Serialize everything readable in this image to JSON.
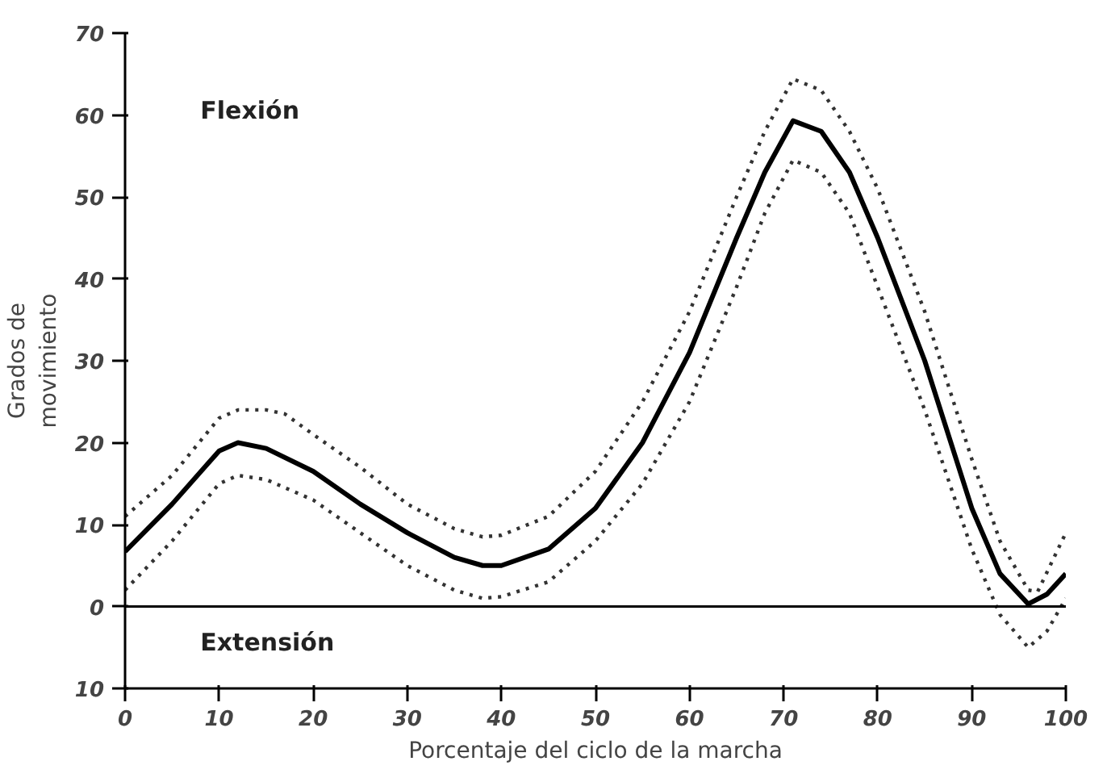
{
  "chart_data": {
    "type": "line",
    "xlabel": "Porcentaje del ciclo de la marcha",
    "ylabel": "Grados de\nmovimiento",
    "annotations": [
      "Flexión",
      "Extensión"
    ],
    "xlim": [
      0,
      100
    ],
    "xticks": [
      0,
      10,
      20,
      30,
      40,
      50,
      60,
      70,
      80,
      90,
      100
    ],
    "ylim": [
      -10,
      70
    ],
    "yticks": [
      {
        "value": -10,
        "label": "10"
      },
      0,
      10,
      20,
      30,
      40,
      50,
      60,
      70
    ],
    "grid": false,
    "marker": "none",
    "ref_lines": [
      {
        "axis": "y",
        "value": 0,
        "color": "#000000",
        "line_style": "solid"
      }
    ],
    "series": [
      {
        "color": "#000000",
        "line_style": "solid",
        "x": [
          0,
          5,
          10,
          12,
          15,
          20,
          25,
          30,
          35,
          38,
          40,
          45,
          50,
          55,
          60,
          65,
          68,
          71,
          74,
          77,
          80,
          85,
          90,
          93,
          96,
          98,
          100
        ],
        "values": [
          6.7,
          12.5,
          19,
          20,
          19.3,
          16.5,
          12.5,
          9,
          6,
          5,
          5,
          7,
          12,
          20,
          31,
          45,
          53,
          59.3,
          58,
          53,
          45,
          30,
          12,
          4,
          0.3,
          1.5,
          4
        ]
      },
      {
        "color": "#333333",
        "line_style": "dotted",
        "x": [
          0,
          5,
          10,
          12,
          15,
          17,
          20,
          25,
          30,
          35,
          38,
          40,
          45,
          50,
          55,
          60,
          65,
          68,
          71,
          74,
          77,
          80,
          85,
          90,
          93,
          96,
          97,
          100
        ],
        "values": [
          11,
          16,
          23,
          24,
          24,
          23.5,
          21,
          17,
          12.5,
          9.5,
          8.5,
          8.7,
          11,
          16.5,
          25,
          36,
          50,
          58,
          64.4,
          63,
          58,
          51,
          36,
          18,
          8,
          2,
          1.8,
          9
        ]
      },
      {
        "color": "#333333",
        "line_style": "dotted",
        "x": [
          0,
          5,
          10,
          12,
          15,
          20,
          25,
          30,
          35,
          38,
          40,
          45,
          50,
          55,
          60,
          65,
          68,
          71,
          74,
          77,
          80,
          85,
          90,
          93,
          96,
          98,
          100
        ],
        "values": [
          2,
          8,
          15,
          16,
          15.5,
          13,
          9,
          5,
          2,
          1,
          1.2,
          3,
          8,
          15,
          25,
          39,
          48,
          54.5,
          53,
          48,
          39,
          24,
          7,
          -1,
          -5,
          -3,
          1
        ]
      }
    ]
  }
}
